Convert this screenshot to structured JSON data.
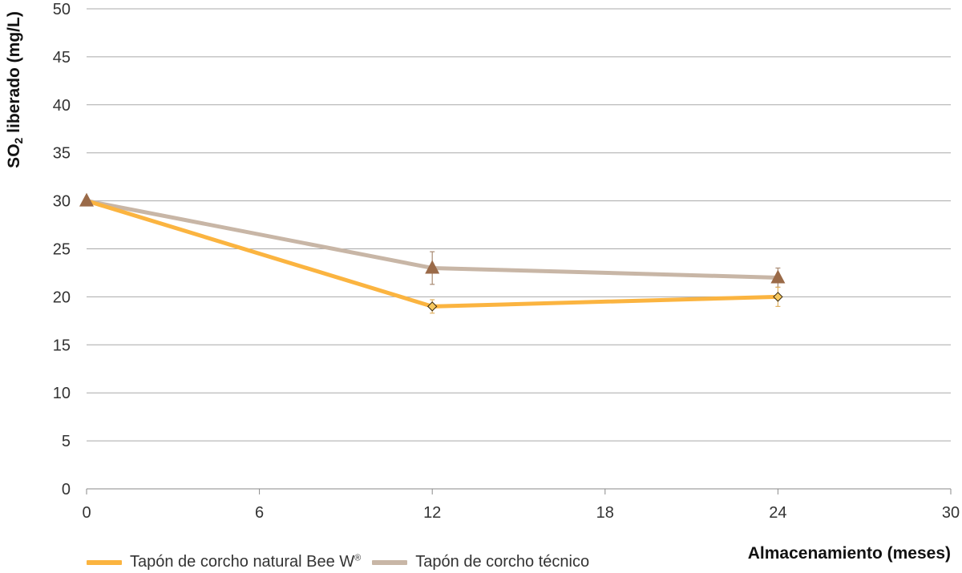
{
  "chart_data": {
    "type": "line",
    "xlabel": "Almacenamiento (meses)",
    "ylabel_parts": [
      "SO",
      "2",
      " liberado (mg/L)"
    ],
    "xlim": [
      0,
      30
    ],
    "ylim": [
      0,
      50
    ],
    "x_ticks": [
      0,
      6,
      12,
      18,
      24,
      30
    ],
    "y_ticks": [
      0,
      5,
      10,
      15,
      20,
      25,
      30,
      35,
      40,
      45,
      50
    ],
    "grid": "horizontal",
    "legend_position": "bottom-left",
    "series": [
      {
        "name": "Tapón de corcho natural Bee W®",
        "color": "#fbb440",
        "marker": "diamond",
        "marker_color": "#f6c85f",
        "x": [
          0,
          12,
          24
        ],
        "y": [
          30,
          19,
          20
        ],
        "error": [
          0,
          0.7,
          1.0
        ]
      },
      {
        "name": "Tapón de corcho técnico",
        "color": "#c8b6a6",
        "marker": "triangle",
        "marker_color": "#9a6a48",
        "x": [
          0,
          12,
          24
        ],
        "y": [
          30,
          23,
          22
        ],
        "error": [
          0,
          1.7,
          1.0
        ]
      }
    ]
  },
  "legend": {
    "items": [
      {
        "label": "Tapón de corcho natural Bee W",
        "sup": "®",
        "color": "#fbb440"
      },
      {
        "label": "Tapón de corcho técnico",
        "sup": "",
        "color": "#c8b6a6"
      }
    ]
  }
}
